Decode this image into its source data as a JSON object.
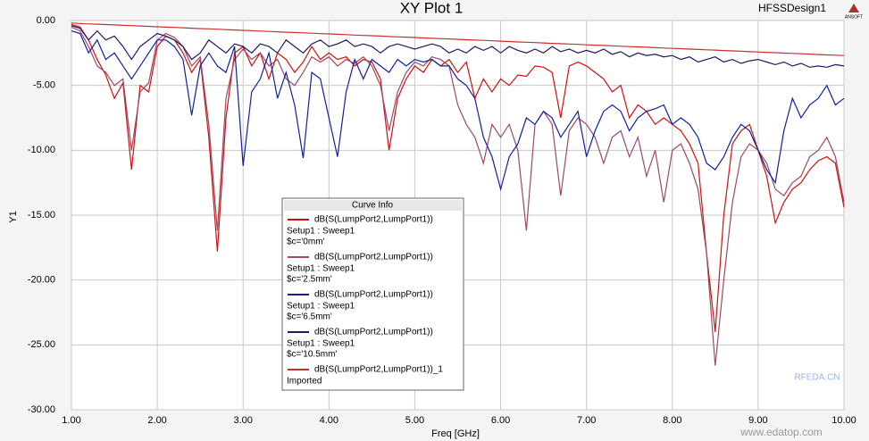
{
  "chart_data": {
    "type": "line",
    "title": "XY Plot 1",
    "design": "HFSSDesign1",
    "logo": "ANSOFT",
    "xlabel": "Freq [GHz]",
    "ylabel": "Y1",
    "legend_title": "Curve Info",
    "grid": true,
    "xlim": [
      1,
      10
    ],
    "ylim": [
      -30,
      0
    ],
    "xticks": [
      {
        "value": 1,
        "label": "1.00"
      },
      {
        "value": 2,
        "label": "2.00"
      },
      {
        "value": 3,
        "label": "3.00"
      },
      {
        "value": 4,
        "label": "4.00"
      },
      {
        "value": 5,
        "label": "5.00"
      },
      {
        "value": 6,
        "label": "6.00"
      },
      {
        "value": 7,
        "label": "7.00"
      },
      {
        "value": 8,
        "label": "8.00"
      },
      {
        "value": 9,
        "label": "9.00"
      },
      {
        "value": 10,
        "label": "10.00"
      }
    ],
    "yticks": [
      {
        "value": 0,
        "label": "0.00"
      },
      {
        "value": -5,
        "label": "-5.00"
      },
      {
        "value": -10,
        "label": "-10.00"
      },
      {
        "value": -15,
        "label": "-15.00"
      },
      {
        "value": -20,
        "label": "-20.00"
      },
      {
        "value": -25,
        "label": "-25.00"
      },
      {
        "value": -30,
        "label": "-30.00"
      }
    ],
    "x": [
      1.0,
      1.1,
      1.2,
      1.3,
      1.4,
      1.5,
      1.6,
      1.7,
      1.8,
      1.9,
      2.0,
      2.1,
      2.2,
      2.3,
      2.4,
      2.5,
      2.6,
      2.7,
      2.8,
      2.9,
      3.0,
      3.1,
      3.2,
      3.3,
      3.4,
      3.5,
      3.6,
      3.7,
      3.8,
      3.9,
      4.0,
      4.1,
      4.2,
      4.3,
      4.4,
      4.5,
      4.6,
      4.7,
      4.8,
      4.9,
      5.0,
      5.1,
      5.2,
      5.3,
      5.4,
      5.5,
      5.6,
      5.7,
      5.8,
      5.9,
      6.0,
      6.1,
      6.2,
      6.3,
      6.4,
      6.5,
      6.6,
      6.7,
      6.8,
      6.9,
      7.0,
      7.1,
      7.2,
      7.3,
      7.4,
      7.5,
      7.6,
      7.7,
      7.8,
      7.9,
      8.0,
      8.1,
      8.2,
      8.3,
      8.4,
      8.5,
      8.6,
      8.7,
      8.8,
      8.9,
      9.0,
      9.1,
      9.2,
      9.3,
      9.4,
      9.5,
      9.6,
      9.7,
      9.8,
      9.9,
      10.0
    ],
    "series": [
      {
        "name": "dB(S(LumpPort2,LumpPort1))",
        "setup": "Setup1 : Sweep1",
        "variation": "$c='0mm'",
        "color": "#d01010",
        "values": [
          -0.3,
          -0.5,
          -1.5,
          -3.0,
          -4.2,
          -6.0,
          -4.8,
          -11.5,
          -5.0,
          -5.5,
          -2.0,
          -1.2,
          -1.5,
          -2.5,
          -4.0,
          -3.0,
          -9.0,
          -17.8,
          -7.5,
          -2.5,
          -2.0,
          -3.5,
          -2.5,
          -4.5,
          -2.5,
          -3.0,
          -4.0,
          -3.2,
          -2.0,
          -3.0,
          -2.5,
          -3.0,
          -2.8,
          -3.5,
          -3.0,
          -3.2,
          -4.5,
          -10.0,
          -6.0,
          -4.5,
          -3.5,
          -4.0,
          -3.0,
          -3.5,
          -3.0,
          -4.0,
          -3.2,
          -6.0,
          -4.5,
          -5.5,
          -4.5,
          -5.0,
          -4.2,
          -4.3,
          -3.5,
          -3.6,
          -4.0,
          -7.5,
          -3.5,
          -3.2,
          -3.5,
          -4.0,
          -4.5,
          -5.5,
          -5.0,
          -7.5,
          -6.5,
          -7.0,
          -8.0,
          -7.5,
          -8.0,
          -8.5,
          -9.5,
          -11.0,
          -18.0,
          -24.0,
          -15.0,
          -9.5,
          -8.5,
          -8.0,
          -10.0,
          -12.0,
          -15.6,
          -14.0,
          -13.0,
          -12.5,
          -11.5,
          -10.8,
          -10.5,
          -11.0,
          -14.4
        ]
      },
      {
        "name": "dB(S(LumpPort2,LumpPort1))",
        "setup": "Setup1 : Sweep1",
        "variation": "$c='2.5mm'",
        "color": "#9a4a64",
        "values": [
          -0.5,
          -0.8,
          -2.0,
          -3.5,
          -4.0,
          -5.0,
          -4.5,
          -10.0,
          -5.5,
          -4.8,
          -1.5,
          -1.0,
          -1.3,
          -2.0,
          -3.5,
          -2.8,
          -8.0,
          -16.2,
          -6.0,
          -3.0,
          -2.2,
          -3.0,
          -2.5,
          -3.5,
          -3.0,
          -4.5,
          -5.0,
          -4.0,
          -2.8,
          -3.2,
          -2.8,
          -3.5,
          -3.0,
          -3.3,
          -2.8,
          -3.5,
          -5.0,
          -8.5,
          -5.5,
          -4.0,
          -3.2,
          -3.5,
          -2.8,
          -3.0,
          -3.5,
          -6.5,
          -8.0,
          -9.0,
          -11.0,
          -8.0,
          -9.0,
          -8.0,
          -10.0,
          -16.2,
          -8.0,
          -7.0,
          -8.0,
          -13.5,
          -8.5,
          -7.5,
          -8.0,
          -9.0,
          -11.0,
          -9.0,
          -8.5,
          -10.5,
          -9.0,
          -12.0,
          -10.0,
          -14.0,
          -10.0,
          -9.5,
          -11.0,
          -13.0,
          -18.0,
          -26.6,
          -20.0,
          -14.0,
          -10.5,
          -9.5,
          -10.0,
          -11.0,
          -13.0,
          -13.5,
          -12.5,
          -12.0,
          -10.5,
          -10.0,
          -9.0,
          -10.5,
          -14.0
        ]
      },
      {
        "name": "dB(S(LumpPort2,LumpPort1))",
        "setup": "Setup1 : Sweep1",
        "variation": "$c='6.5mm'",
        "color": "#10209a",
        "values": [
          -0.8,
          -1.0,
          -2.5,
          -1.5,
          -3.0,
          -2.5,
          -3.5,
          -4.5,
          -3.5,
          -2.5,
          -1.5,
          -1.5,
          -2.0,
          -3.0,
          -7.3,
          -3.5,
          -2.5,
          -3.5,
          -4.0,
          -2.0,
          -11.2,
          -5.5,
          -4.5,
          -2.5,
          -6.0,
          -4.0,
          -6.5,
          -10.6,
          -4.0,
          -4.5,
          -7.5,
          -10.5,
          -5.5,
          -3.0,
          -4.5,
          -3.0,
          -3.5,
          -4.0,
          -3.0,
          -3.5,
          -3.0,
          -3.2,
          -3.0,
          -3.5,
          -3.5,
          -4.5,
          -5.0,
          -6.0,
          -9.0,
          -10.5,
          -13.0,
          -10.5,
          -9.5,
          -7.5,
          -8.0,
          -7.0,
          -7.5,
          -9.0,
          -8.0,
          -7.0,
          -10.5,
          -8.5,
          -7.0,
          -6.5,
          -7.0,
          -8.5,
          -7.5,
          -7.0,
          -6.8,
          -6.5,
          -8.0,
          -7.5,
          -8.0,
          -9.0,
          -11.0,
          -11.5,
          -10.5,
          -9.0,
          -8.0,
          -8.5,
          -10.0,
          -11.5,
          -12.5,
          -8.5,
          -6.0,
          -7.5,
          -6.5,
          -6.0,
          -5.0,
          -6.5,
          -6.0
        ]
      },
      {
        "name": "dB(S(LumpPort2,LumpPort1))",
        "setup": "Setup1 : Sweep1",
        "variation": "$c='10.5mm'",
        "color": "#22185e",
        "values": [
          -0.4,
          -0.6,
          -1.5,
          -0.8,
          -1.5,
          -1.2,
          -2.0,
          -3.0,
          -2.0,
          -1.5,
          -1.0,
          -1.2,
          -1.5,
          -2.0,
          -3.0,
          -2.5,
          -1.5,
          -2.0,
          -2.5,
          -1.8,
          -2.0,
          -2.5,
          -1.8,
          -2.0,
          -2.5,
          -1.5,
          -2.0,
          -2.5,
          -1.8,
          -1.5,
          -2.0,
          -1.8,
          -1.5,
          -2.0,
          -1.8,
          -2.0,
          -2.5,
          -2.0,
          -1.8,
          -2.0,
          -2.2,
          -2.0,
          -1.8,
          -2.0,
          -2.5,
          -2.2,
          -2.5,
          -2.0,
          -2.3,
          -2.0,
          -2.5,
          -2.0,
          -2.3,
          -2.5,
          -2.2,
          -2.5,
          -2.0,
          -2.4,
          -2.2,
          -2.5,
          -2.3,
          -2.5,
          -2.2,
          -2.6,
          -2.4,
          -2.8,
          -2.5,
          -2.7,
          -2.6,
          -2.8,
          -2.7,
          -3.0,
          -2.8,
          -3.2,
          -3.0,
          -2.8,
          -3.2,
          -3.0,
          -3.3,
          -3.1,
          -3.0,
          -3.2,
          -3.4,
          -3.2,
          -3.5,
          -3.3,
          -3.6,
          -3.5,
          -3.6,
          -3.4,
          -3.5
        ]
      },
      {
        "name": "dB(S(LumpPort2,LumpPort1))_1",
        "setup": "Imported",
        "color": "#c83030",
        "values": [
          -0.2,
          -0.23,
          -0.26,
          -0.28,
          -0.31,
          -0.34,
          -0.37,
          -0.39,
          -0.42,
          -0.45,
          -0.48,
          -0.51,
          -0.53,
          -0.56,
          -0.59,
          -0.62,
          -0.64,
          -0.67,
          -0.7,
          -0.73,
          -0.76,
          -0.78,
          -0.81,
          -0.84,
          -0.87,
          -0.9,
          -0.92,
          -0.95,
          -0.98,
          -1.01,
          -1.03,
          -1.06,
          -1.09,
          -1.12,
          -1.15,
          -1.17,
          -1.2,
          -1.23,
          -1.26,
          -1.28,
          -1.31,
          -1.34,
          -1.37,
          -1.4,
          -1.42,
          -1.45,
          -1.48,
          -1.51,
          -1.53,
          -1.56,
          -1.59,
          -1.62,
          -1.65,
          -1.67,
          -1.7,
          -1.73,
          -1.76,
          -1.78,
          -1.81,
          -1.84,
          -1.87,
          -1.9,
          -1.92,
          -1.95,
          -1.98,
          -2.01,
          -2.03,
          -2.06,
          -2.09,
          -2.12,
          -2.15,
          -2.17,
          -2.2,
          -2.23,
          -2.26,
          -2.28,
          -2.31,
          -2.34,
          -2.37,
          -2.4,
          -2.42,
          -2.45,
          -2.48,
          -2.51,
          -2.53,
          -2.56,
          -2.59,
          -2.62,
          -2.65,
          -2.67,
          -2.7
        ]
      }
    ],
    "watermarks": [
      "RFEDA.CN",
      "www.edatop.com"
    ]
  }
}
